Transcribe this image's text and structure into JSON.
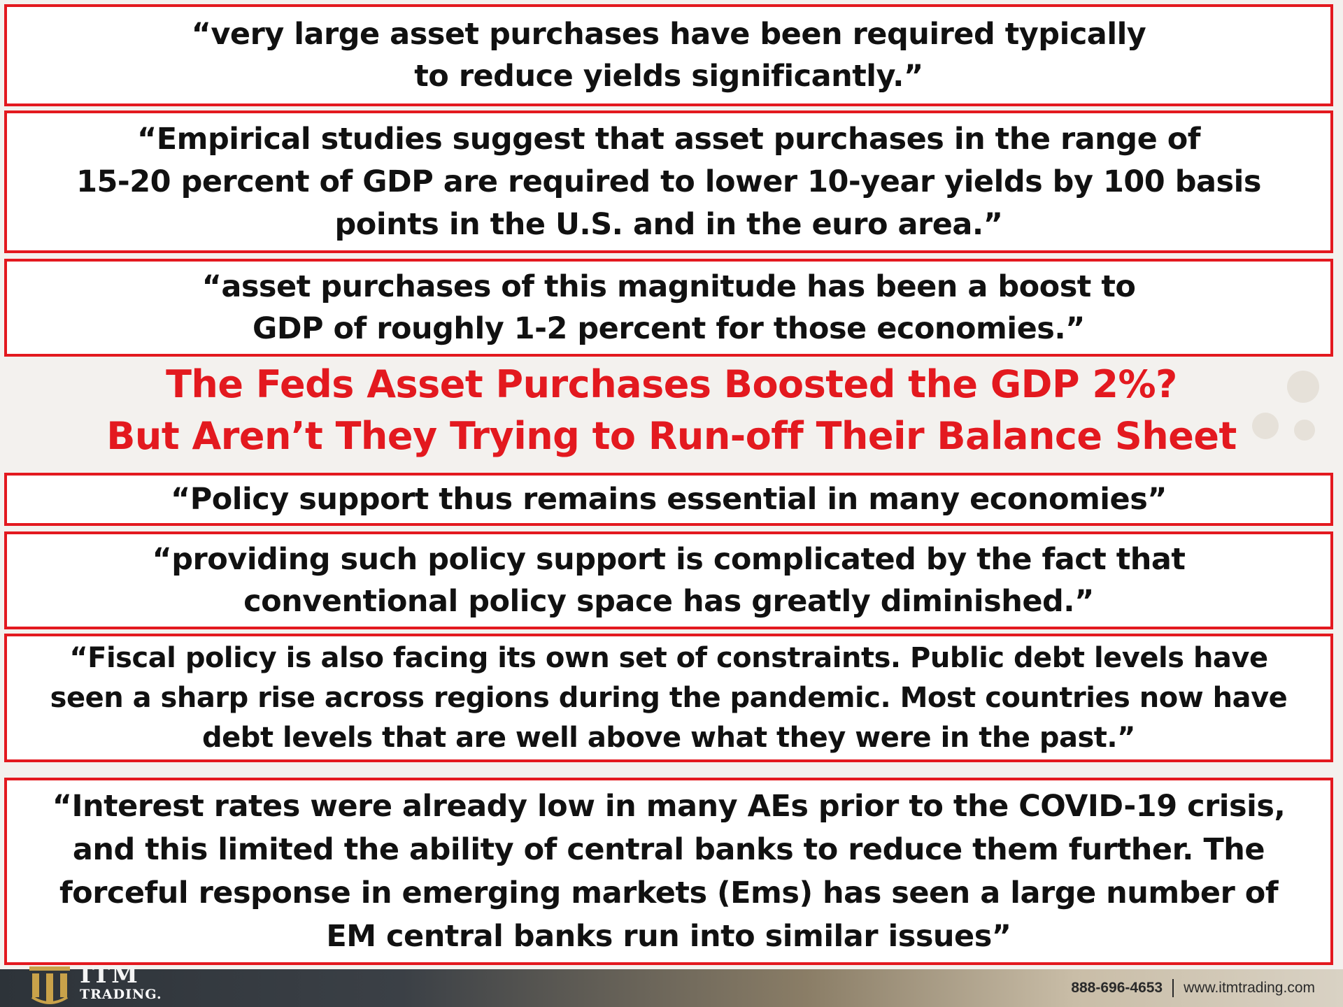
{
  "quotes": [
    {
      "text": "“very large asset purchases have been required typically\nto reduce yields significantly.”"
    },
    {
      "text": "“Empirical studies suggest that asset purchases in the range of\n15-20 percent of GDP are required to lower 10-year yields by 100 basis\npoints in the U.S. and in the euro area.”"
    },
    {
      "text": "“asset purchases of this magnitude has been a boost to\nGDP of roughly 1-2 percent for those economies.”"
    },
    {
      "text": "“Policy support thus remains essential in many economies”"
    },
    {
      "text": "“providing such policy support is complicated by the fact that\nconventional policy space has greatly diminished.”"
    },
    {
      "text": "“Fiscal policy is also facing its own set of constraints. Public debt levels have\nseen a sharp rise across regions during the pandemic. Most countries now have\ndebt levels that are well above what they were in the past.”"
    },
    {
      "text": "“Interest rates were already low in many AEs prior to the COVID-19 crisis,\nand this limited the ability of central banks to reduce them further. The\nforceful response in emerging markets (Ems) has seen a large number of\nEM central banks run into similar issues”"
    }
  ],
  "headline": "The Feds Asset Purchases Boosted the GDP 2%?\nBut Aren’t They Trying to Run-off Their Balance Sheet",
  "footer": {
    "logo_line1": "ITM",
    "logo_line2": "TRADING.",
    "phone": "888-696-4653",
    "website": "www.itmtrading.com"
  },
  "colors": {
    "accent_red": "#e3191f",
    "footer_dark": "#2d3339",
    "footer_light": "#d9d2c4",
    "gold": "#c9a24a"
  }
}
